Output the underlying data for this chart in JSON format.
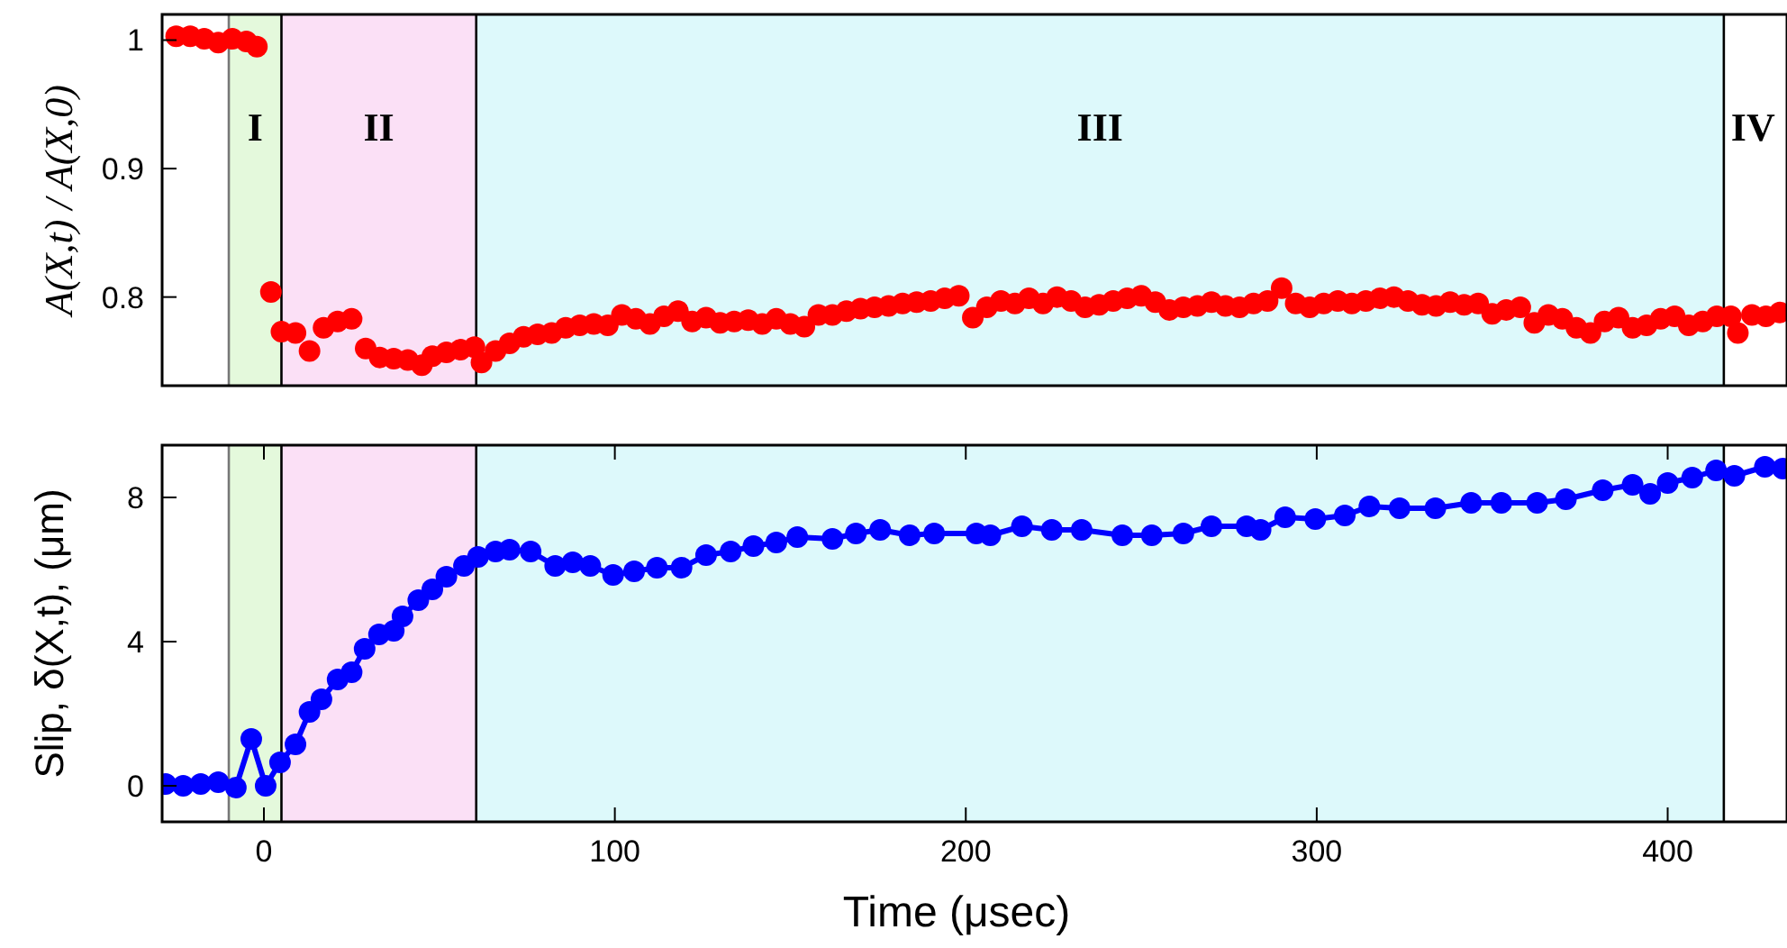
{
  "chart_data": [
    {
      "type": "scatter",
      "ylabel": "A(X,t) / A(X,0)",
      "xlim": [
        -29,
        434
      ],
      "ylim": [
        0.731,
        1.02
      ],
      "yticks": [
        0.8,
        0.9,
        {
          "value": 1,
          "label": "1"
        }
      ],
      "tick_labels": "y",
      "marker": "circle",
      "grid": false,
      "bands": [
        {
          "axis": "x",
          "from": -10,
          "to": 5,
          "label": "I",
          "color": "#e4f9dc"
        },
        {
          "axis": "x",
          "from": 5,
          "to": 60.5,
          "label": "II",
          "color": "#fbe0f6"
        },
        {
          "axis": "x",
          "from": 60.5,
          "to": 416,
          "label": "III",
          "color": "#ddf9fb"
        }
      ],
      "ref_lines": [
        {
          "axis": "x",
          "value": -10,
          "color": "#777777"
        },
        {
          "axis": "x",
          "value": 5,
          "color": "#000000"
        },
        {
          "axis": "x",
          "value": 60.5,
          "color": "#000000"
        },
        {
          "axis": "x",
          "value": 416,
          "label": "IV",
          "color": "#000000"
        }
      ],
      "series": [
        {
          "color": "#ff0000",
          "x": [
            -25,
            -21,
            -17,
            -13,
            -9,
            -5,
            -2,
            2,
            5,
            9,
            13,
            17,
            21,
            25,
            29,
            33,
            37,
            41,
            45,
            48,
            52,
            56,
            60,
            62,
            66,
            70,
            74,
            78,
            82,
            86,
            90,
            94,
            98,
            102,
            106,
            110,
            114,
            118,
            122,
            126,
            130,
            134,
            138,
            142,
            146,
            150,
            154,
            158,
            162,
            166,
            170,
            174,
            178,
            182,
            186,
            190,
            194,
            198,
            202,
            206,
            210,
            214,
            218,
            222,
            226,
            230,
            234,
            238,
            242,
            246,
            250,
            254,
            258,
            262,
            266,
            270,
            274,
            278,
            282,
            286,
            290,
            294,
            298,
            302,
            306,
            310,
            314,
            318,
            322,
            326,
            330,
            334,
            338,
            342,
            346,
            350,
            354,
            358,
            362,
            366,
            370,
            374,
            378,
            382,
            386,
            390,
            394,
            398,
            402,
            406,
            410,
            414,
            418,
            420,
            424,
            428,
            432
          ],
          "values": [
            1.003,
            1.003,
            1.001,
            0.998,
            1.001,
            0.999,
            0.995,
            0.804,
            0.773,
            0.772,
            0.758,
            0.776,
            0.781,
            0.783,
            0.76,
            0.753,
            0.752,
            0.751,
            0.747,
            0.754,
            0.757,
            0.759,
            0.761,
            0.749,
            0.758,
            0.764,
            0.769,
            0.771,
            0.772,
            0.776,
            0.778,
            0.779,
            0.778,
            0.786,
            0.783,
            0.779,
            0.785,
            0.789,
            0.781,
            0.784,
            0.78,
            0.781,
            0.782,
            0.779,
            0.783,
            0.779,
            0.777,
            0.786,
            0.786,
            0.789,
            0.791,
            0.792,
            0.793,
            0.795,
            0.796,
            0.797,
            0.799,
            0.801,
            0.784,
            0.792,
            0.797,
            0.795,
            0.799,
            0.795,
            0.8,
            0.797,
            0.792,
            0.794,
            0.797,
            0.799,
            0.801,
            0.796,
            0.79,
            0.792,
            0.793,
            0.796,
            0.793,
            0.792,
            0.795,
            0.797,
            0.807,
            0.795,
            0.792,
            0.795,
            0.797,
            0.795,
            0.797,
            0.799,
            0.8,
            0.797,
            0.794,
            0.793,
            0.796,
            0.794,
            0.795,
            0.787,
            0.79,
            0.792,
            0.78,
            0.786,
            0.783,
            0.776,
            0.772,
            0.781,
            0.784,
            0.776,
            0.778,
            0.783,
            0.785,
            0.778,
            0.781,
            0.785,
            0.785,
            0.772,
            0.786,
            0.785,
            0.788
          ]
        }
      ]
    },
    {
      "type": "line",
      "xlabel": "Time (μsec)",
      "ylabel": "Slip, δ(X,t), (μm)",
      "xlim": [
        -29,
        434
      ],
      "ylim": [
        -1,
        9.45
      ],
      "xticks": [
        0,
        100,
        200,
        300,
        400
      ],
      "yticks": [
        0,
        4,
        8
      ],
      "marker": "circle",
      "line_style": "solid",
      "grid": false,
      "bands": [
        {
          "axis": "x",
          "from": -10,
          "to": 5,
          "color": "#e4f9dc"
        },
        {
          "axis": "x",
          "from": 5,
          "to": 60.5,
          "color": "#fbe0f6"
        },
        {
          "axis": "x",
          "from": 60.5,
          "to": 416,
          "color": "#ddf9fb"
        }
      ],
      "ref_lines": [
        {
          "axis": "x",
          "value": -10,
          "color": "#777777"
        },
        {
          "axis": "x",
          "value": 5,
          "color": "#000000"
        },
        {
          "axis": "x",
          "value": 60.5,
          "color": "#000000"
        },
        {
          "axis": "x",
          "value": 416,
          "color": "#000000"
        }
      ],
      "series": [
        {
          "color": "#0000ff",
          "x": [
            -28,
            -23,
            -18,
            -13,
            -8,
            -3.6,
            0.5,
            4.6,
            9,
            13,
            16.4,
            21,
            25,
            28.7,
            32.8,
            37,
            39.5,
            44,
            48,
            52,
            57,
            61,
            66,
            70,
            76,
            83,
            88,
            93,
            99.5,
            105.5,
            112,
            119,
            126,
            133,
            139.5,
            146,
            152,
            162,
            168.7,
            175.6,
            184,
            191,
            203,
            207,
            216,
            224.5,
            233,
            244.6,
            253,
            262,
            270,
            280,
            284,
            291,
            299.6,
            308,
            315,
            323.6,
            333.8,
            344,
            352.6,
            362.8,
            371,
            381.5,
            390,
            395,
            400,
            407,
            413.8,
            419,
            427.7,
            432.8
          ],
          "values": [
            0.05,
            0,
            0.05,
            0.1,
            -0.05,
            1.3,
            0,
            0.65,
            1.15,
            2.05,
            2.4,
            2.95,
            3.15,
            3.8,
            4.2,
            4.3,
            4.7,
            5.15,
            5.45,
            5.8,
            6.1,
            6.35,
            6.5,
            6.55,
            6.5,
            6.1,
            6.2,
            6.1,
            5.85,
            5.95,
            6.05,
            6.05,
            6.4,
            6.5,
            6.65,
            6.75,
            6.9,
            6.85,
            7,
            7.1,
            6.95,
            7,
            7,
            6.95,
            7.2,
            7.1,
            7.1,
            6.95,
            6.95,
            7,
            7.2,
            7.2,
            7.1,
            7.45,
            7.4,
            7.5,
            7.75,
            7.7,
            7.7,
            7.85,
            7.85,
            7.85,
            7.95,
            8.2,
            8.35,
            8.1,
            8.4,
            8.55,
            8.75,
            8.6,
            8.85,
            8.8
          ]
        }
      ]
    }
  ]
}
